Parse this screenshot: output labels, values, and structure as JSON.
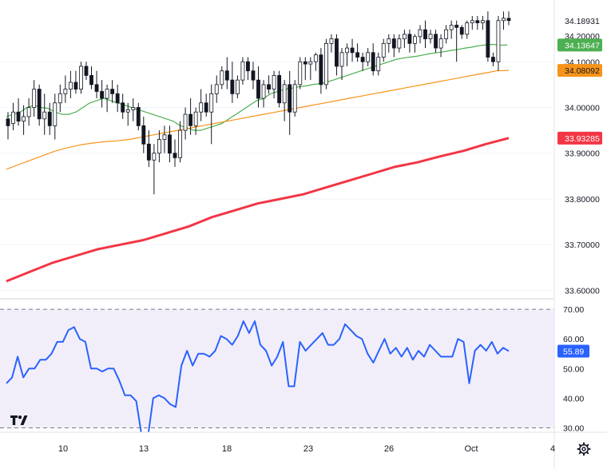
{
  "chart_data": [
    {
      "type": "candlestick",
      "title": "",
      "y_ticks": [
        "34.10000",
        "34.00000",
        "33.90000",
        "33.80000",
        "33.70000",
        "33.60000"
      ],
      "top_partial_label": "34.20000",
      "ylim": [
        33.585,
        34.235
      ],
      "price_tags": [
        {
          "label": "34.18931",
          "value": 34.18931,
          "color": "#ffffff",
          "text_color": "#131722"
        },
        {
          "label": "34.13647",
          "value": 34.13647,
          "color": "#4caf50",
          "text_color": "#ffffff"
        },
        {
          "label": "34.08092",
          "value": 34.08092,
          "color": "#f7931a",
          "text_color": "#131722"
        },
        {
          "label": "33.93285",
          "value": 33.93285,
          "color": "#f23645",
          "text_color": "#ffffff"
        }
      ],
      "candles": [
        [
          33.975,
          33.99,
          33.93,
          33.96
        ],
        [
          33.965,
          34.01,
          33.95,
          33.99
        ],
        [
          33.99,
          34.02,
          33.96,
          33.97
        ],
        [
          33.97,
          34.005,
          33.94,
          33.98
        ],
        [
          33.98,
          34.02,
          33.96,
          34.0
        ],
        [
          34.0,
          34.06,
          33.98,
          34.04
        ],
        [
          34.04,
          34.05,
          33.96,
          33.975
        ],
        [
          33.975,
          34.03,
          33.94,
          33.99
        ],
        [
          33.99,
          34.01,
          33.94,
          33.96
        ],
        [
          33.96,
          34.03,
          33.93,
          34.01
        ],
        [
          34.01,
          34.05,
          33.99,
          34.03
        ],
        [
          34.03,
          34.07,
          34.01,
          34.04
        ],
        [
          34.04,
          34.08,
          34.02,
          34.055
        ],
        [
          34.055,
          34.08,
          34.03,
          34.04
        ],
        [
          34.04,
          34.1,
          34.03,
          34.09
        ],
        [
          34.09,
          34.1,
          34.06,
          34.07
        ],
        [
          34.07,
          34.09,
          34.04,
          34.05
        ],
        [
          34.05,
          34.08,
          34.02,
          34.035
        ],
        [
          34.035,
          34.06,
          34.0,
          34.02
        ],
        [
          34.02,
          34.05,
          33.99,
          34.04
        ],
        [
          34.04,
          34.06,
          34.01,
          34.03
        ],
        [
          34.03,
          34.05,
          33.99,
          34.01
        ],
        [
          34.01,
          34.03,
          33.975,
          33.99
        ],
        [
          33.99,
          34.01,
          33.96,
          33.995
        ],
        [
          33.995,
          34.02,
          33.97,
          34.0
        ],
        [
          34.0,
          34.01,
          33.95,
          33.96
        ],
        [
          33.96,
          33.98,
          33.9,
          33.92
        ],
        [
          33.92,
          33.95,
          33.87,
          33.885
        ],
        [
          33.885,
          33.92,
          33.81,
          33.9
        ],
        [
          33.9,
          33.95,
          33.88,
          33.93
        ],
        [
          33.93,
          33.96,
          33.9,
          33.94
        ],
        [
          33.94,
          33.96,
          33.88,
          33.9
        ],
        [
          33.9,
          33.93,
          33.87,
          33.89
        ],
        [
          33.89,
          33.97,
          33.88,
          33.95
        ],
        [
          33.95,
          34.0,
          33.93,
          33.985
        ],
        [
          33.985,
          34.02,
          33.94,
          33.96
        ],
        [
          33.96,
          34.0,
          33.94,
          33.99
        ],
        [
          33.99,
          34.04,
          33.97,
          34.01
        ],
        [
          34.01,
          34.03,
          33.98,
          33.99
        ],
        [
          33.99,
          34.05,
          33.92,
          34.03
        ],
        [
          34.03,
          34.07,
          34.01,
          34.05
        ],
        [
          34.05,
          34.09,
          34.04,
          34.08
        ],
        [
          34.08,
          34.11,
          34.04,
          34.06
        ],
        [
          34.06,
          34.1,
          34.01,
          34.03
        ],
        [
          34.03,
          34.07,
          34.02,
          34.06
        ],
        [
          34.06,
          34.11,
          34.05,
          34.1
        ],
        [
          34.1,
          34.11,
          34.06,
          34.08
        ],
        [
          34.08,
          34.1,
          34.04,
          34.06
        ],
        [
          34.06,
          34.09,
          34.0,
          34.02
        ],
        [
          34.02,
          34.06,
          34.0,
          34.05
        ],
        [
          34.05,
          34.07,
          34.03,
          34.04
        ],
        [
          34.04,
          34.08,
          34.02,
          34.07
        ],
        [
          34.07,
          34.08,
          34.0,
          34.01
        ],
        [
          34.01,
          34.06,
          33.97,
          34.05
        ],
        [
          34.05,
          34.08,
          33.94,
          33.99
        ],
        [
          33.99,
          34.06,
          33.98,
          34.05
        ],
        [
          34.05,
          34.11,
          34.04,
          34.1
        ],
        [
          34.1,
          34.11,
          34.06,
          34.095
        ],
        [
          34.095,
          34.11,
          34.06,
          34.1
        ],
        [
          34.1,
          34.12,
          34.08,
          34.115
        ],
        [
          34.115,
          34.13,
          34.03,
          34.05
        ],
        [
          34.05,
          34.15,
          34.04,
          34.14
        ],
        [
          34.14,
          34.16,
          34.12,
          34.15
        ],
        [
          34.15,
          34.16,
          34.07,
          34.09
        ],
        [
          34.09,
          34.13,
          34.06,
          34.12
        ],
        [
          34.12,
          34.14,
          34.09,
          34.13
        ],
        [
          34.13,
          34.15,
          34.1,
          34.12
        ],
        [
          34.12,
          34.14,
          34.1,
          34.11
        ],
        [
          34.11,
          34.12,
          34.08,
          34.1
        ],
        [
          34.1,
          34.13,
          34.09,
          34.12
        ],
        [
          34.12,
          34.14,
          34.07,
          34.08
        ],
        [
          34.08,
          34.12,
          34.07,
          34.11
        ],
        [
          34.11,
          34.15,
          34.1,
          34.14
        ],
        [
          34.14,
          34.16,
          34.12,
          34.15
        ],
        [
          34.15,
          34.16,
          34.11,
          34.13
        ],
        [
          34.13,
          34.16,
          34.12,
          34.15
        ],
        [
          34.15,
          34.17,
          34.13,
          34.16
        ],
        [
          34.16,
          34.17,
          34.12,
          34.14
        ],
        [
          34.14,
          34.16,
          34.12,
          34.155
        ],
        [
          34.155,
          34.18,
          34.14,
          34.17
        ],
        [
          34.17,
          34.19,
          34.13,
          34.15
        ],
        [
          34.15,
          34.17,
          34.14,
          34.16
        ],
        [
          34.16,
          34.17,
          34.12,
          34.13
        ],
        [
          34.13,
          34.16,
          34.11,
          34.15
        ],
        [
          34.15,
          34.18,
          34.14,
          34.17
        ],
        [
          34.17,
          34.19,
          34.15,
          34.18
        ],
        [
          34.18,
          34.19,
          34.1,
          34.175
        ],
        [
          34.175,
          34.18,
          34.15,
          34.16
        ],
        [
          34.16,
          34.19,
          34.15,
          34.185
        ],
        [
          34.185,
          34.2,
          34.17,
          34.19
        ],
        [
          34.19,
          34.2,
          34.17,
          34.185
        ],
        [
          34.185,
          34.2,
          34.17,
          34.19
        ],
        [
          34.19,
          34.21,
          34.1,
          34.11
        ],
        [
          34.11,
          34.12,
          34.09,
          34.1
        ],
        [
          34.1,
          34.2,
          34.08,
          34.19
        ],
        [
          34.19,
          34.21,
          34.17,
          34.195
        ],
        [
          34.195,
          34.21,
          34.18,
          34.19
        ]
      ],
      "series": [
        {
          "values": [
            33.98,
            33.985,
            33.99,
            34.0,
            34.005,
            34.0,
            33.998,
            33.99,
            33.985,
            33.985,
            33.99,
            34.0,
            34.01,
            34.015,
            34.02,
            34.015,
            34.01,
            34.005,
            34.0,
            33.995,
            33.99,
            33.985,
            33.98,
            33.975,
            33.97,
            33.96,
            33.955,
            33.95,
            33.95,
            33.955,
            33.96,
            33.965,
            33.975,
            33.985,
            33.995,
            34.005,
            34.015,
            34.02,
            34.03,
            34.035,
            34.04,
            34.042,
            34.045,
            34.047,
            34.05,
            34.052,
            34.055,
            34.06,
            34.065,
            34.07,
            34.075,
            34.08,
            34.085,
            34.09,
            34.095,
            34.1,
            34.105,
            34.108,
            34.11,
            34.112,
            34.115,
            34.118,
            34.12,
            34.122,
            34.125,
            34.127,
            34.13,
            34.132,
            34.135,
            34.137,
            34.138,
            34.136,
            34.137
          ],
          "color": "#4caf50"
        },
        {
          "values": [
            33.865,
            33.875,
            33.885,
            33.895,
            33.905,
            33.912,
            33.918,
            33.922,
            33.925,
            33.927,
            33.93,
            33.935,
            33.94,
            33.945,
            33.95,
            33.955,
            33.96,
            33.965,
            33.97,
            33.975,
            33.98,
            33.985,
            33.99,
            33.995,
            34.0,
            34.005,
            34.01,
            34.015,
            34.02,
            34.025,
            34.03,
            34.035,
            34.04,
            34.045,
            34.05,
            34.055,
            34.06,
            34.065,
            34.07,
            34.075,
            34.08,
            34.081
          ],
          "color": "#f7931a"
        },
        {
          "values": [
            33.62,
            33.64,
            33.66,
            33.675,
            33.69,
            33.7,
            33.71,
            33.725,
            33.74,
            33.76,
            33.775,
            33.79,
            33.8,
            33.81,
            33.825,
            33.84,
            33.855,
            33.87,
            33.88,
            33.893,
            33.905,
            33.92,
            33.933
          ],
          "color": "#f23645"
        }
      ]
    },
    {
      "type": "line",
      "title": "",
      "y_ticks": [
        "70.00",
        "60.00",
        "50.00",
        "40.00",
        "30.00"
      ],
      "ylim": [
        28.5,
        73.0
      ],
      "bands": [
        70.0,
        30.0
      ],
      "last_value_label": "55.89",
      "series": [
        {
          "values": [
            45,
            47,
            54,
            47,
            50,
            50,
            53,
            53,
            55,
            59,
            59,
            63,
            64,
            60,
            59,
            50,
            50,
            49,
            50,
            50,
            46,
            41,
            41,
            39,
            27,
            26,
            40,
            41,
            40,
            38,
            37,
            51,
            56,
            51,
            55,
            55,
            54,
            56,
            61,
            60,
            58,
            61,
            66,
            62,
            66,
            58,
            56,
            51,
            54,
            59,
            44,
            44,
            59,
            56,
            58,
            60,
            62,
            58,
            58,
            60,
            65,
            63,
            61,
            60,
            55,
            52,
            56,
            60,
            55,
            57,
            54,
            57,
            53,
            56,
            54,
            58,
            56,
            54,
            54,
            54,
            60,
            59,
            45,
            56,
            58,
            56,
            59,
            55,
            57,
            55.89
          ],
          "color": "#2962ff"
        }
      ]
    }
  ],
  "x_axis": {
    "labels": [
      "10",
      "13",
      "18",
      "23",
      "26",
      "Oct",
      "4"
    ]
  },
  "icons": {
    "logo": "tradingview-logo-icon",
    "settings": "gear-icon"
  }
}
